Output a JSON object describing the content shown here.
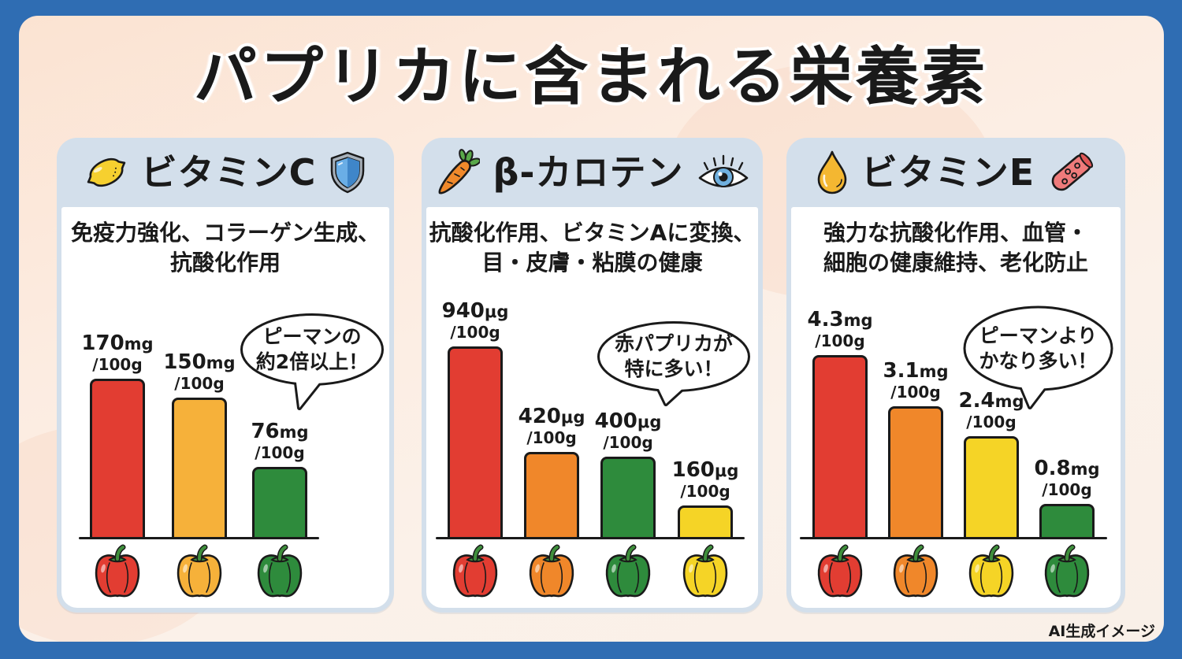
{
  "title": "パプリカに含まれる栄養素",
  "footer_note": "AI生成イメージ",
  "colors": {
    "frame": "#2f6db3",
    "panel_header": "#d3dfeb",
    "text": "#1a1a1a"
  },
  "panels": [
    {
      "title": "ビタミンC",
      "icon_left": "lemon-icon",
      "icon_right": "shield-icon",
      "description": [
        "免疫力強化、コラーゲン生成、",
        "抗酸化作用"
      ],
      "callout": [
        "ピーマンの",
        "約2倍以上！"
      ],
      "bars": [
        {
          "value": "170",
          "unit": "mg",
          "per": "/100g",
          "pepper": "red-pepper",
          "color": "#e23d32"
        },
        {
          "value": "150",
          "unit": "mg",
          "per": "/100g",
          "pepper": "yellow-pepper",
          "color": "#f6b13a"
        },
        {
          "value": "76",
          "unit": "mg",
          "per": "/100g",
          "pepper": "green-pepper",
          "color": "#2e8b3c"
        }
      ]
    },
    {
      "title": "β-カロテン",
      "icon_left": "carrot-icon",
      "icon_right": "eye-icon",
      "description": [
        "抗酸化作用、ビタミンAに変換、",
        "目・皮膚・粘膜の健康"
      ],
      "callout": [
        "赤パプリカが",
        "特に多い！"
      ],
      "bars": [
        {
          "value": "940",
          "unit": "μg",
          "per": "/100g",
          "pepper": "red-pepper",
          "color": "#e23d32"
        },
        {
          "value": "420",
          "unit": "μg",
          "per": "/100g",
          "pepper": "orange-pepper",
          "color": "#f0872a"
        },
        {
          "value": "400",
          "unit": "μg",
          "per": "/100g",
          "pepper": "green-pepper",
          "color": "#2e8b3c"
        },
        {
          "value": "160",
          "unit": "μg",
          "per": "/100g",
          "pepper": "yellow-pepper",
          "color": "#f5d426"
        }
      ]
    },
    {
      "title": "ビタミンE",
      "icon_left": "oil-drop-icon",
      "icon_right": "blood-vessel-icon",
      "description": [
        "強力な抗酸化作用、血管・",
        "細胞の健康維持、老化防止"
      ],
      "callout": [
        "ピーマンより",
        "かなり多い！"
      ],
      "bars": [
        {
          "value": "4.3",
          "unit": "mg",
          "per": "/100g",
          "pepper": "red-pepper",
          "color": "#e23d32"
        },
        {
          "value": "3.1",
          "unit": "mg",
          "per": "/100g",
          "pepper": "orange-pepper",
          "color": "#f0872a"
        },
        {
          "value": "2.4",
          "unit": "mg",
          "per": "/100g",
          "pepper": "yellow-pepper",
          "color": "#f5d426"
        },
        {
          "value": "0.8",
          "unit": "mg",
          "per": "/100g",
          "pepper": "green-pepper",
          "color": "#2e8b3c"
        }
      ]
    }
  ],
  "chart_data": [
    {
      "type": "bar",
      "title": "ビタミンC",
      "subtitle": "免疫力強化、コラーゲン生成、抗酸化作用",
      "categories": [
        "red-pepper",
        "yellow-pepper",
        "green-pepper"
      ],
      "values": [
        170,
        150,
        76
      ],
      "unit": "mg/100g",
      "annotation": "ピーマンの約2倍以上！",
      "xlabel": "",
      "ylabel": "",
      "grid": false,
      "legend": "none"
    },
    {
      "type": "bar",
      "title": "β-カロテン",
      "subtitle": "抗酸化作用、ビタミンAに変換、目・皮膚・粘膜の健康",
      "categories": [
        "red-pepper",
        "orange-pepper",
        "green-pepper",
        "yellow-pepper"
      ],
      "values": [
        940,
        420,
        400,
        160
      ],
      "unit": "μg/100g",
      "annotation": "赤パプリカが特に多い！",
      "xlabel": "",
      "ylabel": "",
      "grid": false,
      "legend": "none"
    },
    {
      "type": "bar",
      "title": "ビタミンE",
      "subtitle": "強力な抗酸化作用、血管・細胞の健康維持、老化防止",
      "categories": [
        "red-pepper",
        "orange-pepper",
        "yellow-pepper",
        "green-pepper"
      ],
      "values": [
        4.3,
        3.1,
        2.4,
        0.8
      ],
      "unit": "mg/100g",
      "annotation": "ピーマンよりかなり多い！",
      "xlabel": "",
      "ylabel": "",
      "grid": false,
      "legend": "none"
    }
  ]
}
